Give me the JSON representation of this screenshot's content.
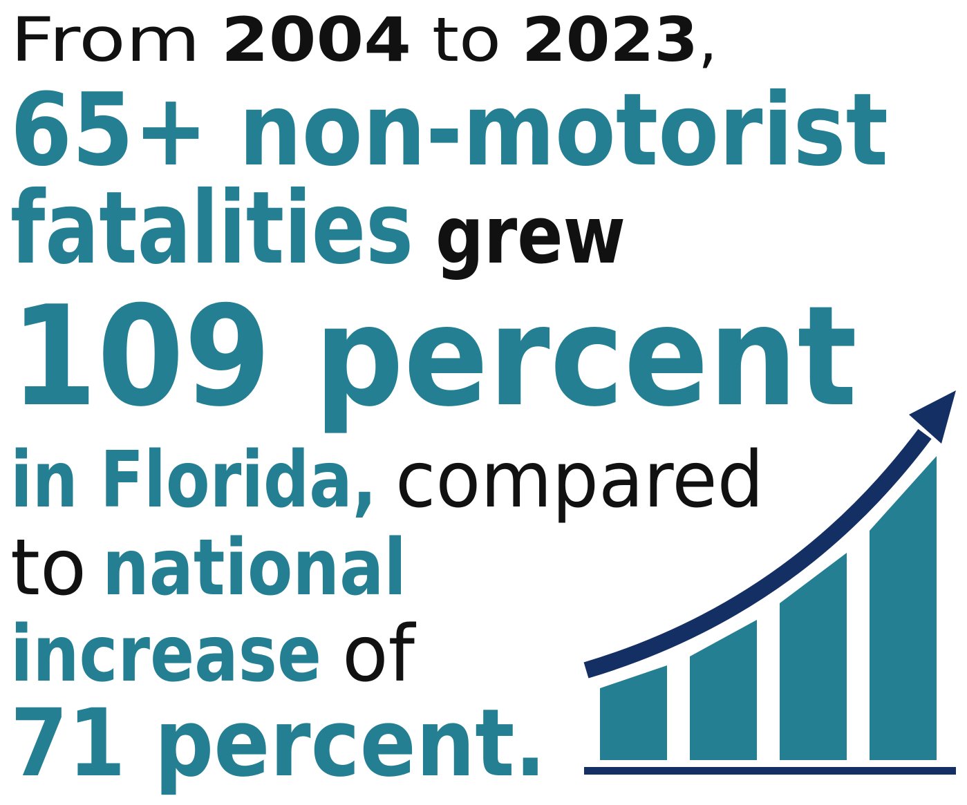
{
  "statement": {
    "line1": [
      "From",
      "2004",
      "to",
      "2023",
      ","
    ],
    "line2": [
      "65+ non-motorist"
    ],
    "line3": [
      "fatalities",
      "grew"
    ],
    "line4": [
      "109 percent"
    ],
    "line5": [
      "in Florida,",
      "compared"
    ],
    "line6": [
      "to",
      "national"
    ],
    "line7": [
      "increase",
      "of"
    ],
    "line8": [
      "71 percent."
    ]
  }
}
